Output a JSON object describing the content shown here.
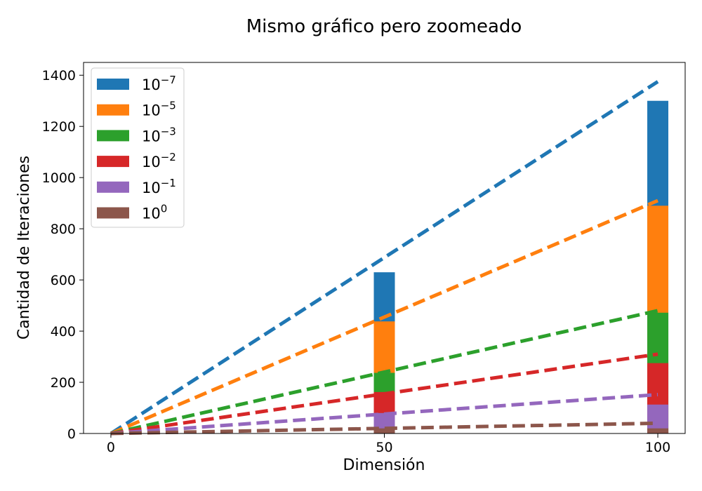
{
  "chart_data": {
    "type": "bar",
    "title": "Mismo gráfico pero zoomeado",
    "xlabel": "Dimensión",
    "ylabel": "Cantidad de Iteraciones",
    "xlim": [
      -5,
      105
    ],
    "ylim": [
      0,
      1450
    ],
    "x_ticks": [
      "0",
      "50",
      "100"
    ],
    "y_ticks": [
      "0",
      "200",
      "400",
      "600",
      "800",
      "1000",
      "1200",
      "1400"
    ],
    "grid": false,
    "legend_position": "top-left",
    "categories": [
      50,
      100
    ],
    "bar_note": "stacked from largest to smallest tolerance; each series drawn from 0 to its value",
    "series": [
      {
        "name": "10",
        "exponent": "−7",
        "color": "#1f77b4",
        "bars": [
          630,
          1300
        ],
        "trend": [
          [
            0,
            0
          ],
          [
            100,
            1375
          ]
        ]
      },
      {
        "name": "10",
        "exponent": "−5",
        "color": "#ff7f0e",
        "bars": [
          438,
          890
        ],
        "trend": [
          [
            0,
            0
          ],
          [
            100,
            910
          ]
        ]
      },
      {
        "name": "10",
        "exponent": "−3",
        "color": "#2ca02c",
        "bars": [
          237,
          472
        ],
        "trend": [
          [
            0,
            0
          ],
          [
            100,
            480
          ]
        ]
      },
      {
        "name": "10",
        "exponent": "−2",
        "color": "#d62728",
        "bars": [
          162,
          275
        ],
        "trend": [
          [
            0,
            0
          ],
          [
            100,
            310
          ]
        ]
      },
      {
        "name": "10",
        "exponent": "−1",
        "color": "#9467bd",
        "bars": [
          80,
          113
        ],
        "trend": [
          [
            0,
            0
          ],
          [
            100,
            152
          ]
        ]
      },
      {
        "name": "10",
        "exponent": "0",
        "color": "#8c564b",
        "bars": [
          20,
          20
        ],
        "trend": [
          [
            0,
            0
          ],
          [
            100,
            40
          ]
        ]
      }
    ]
  }
}
